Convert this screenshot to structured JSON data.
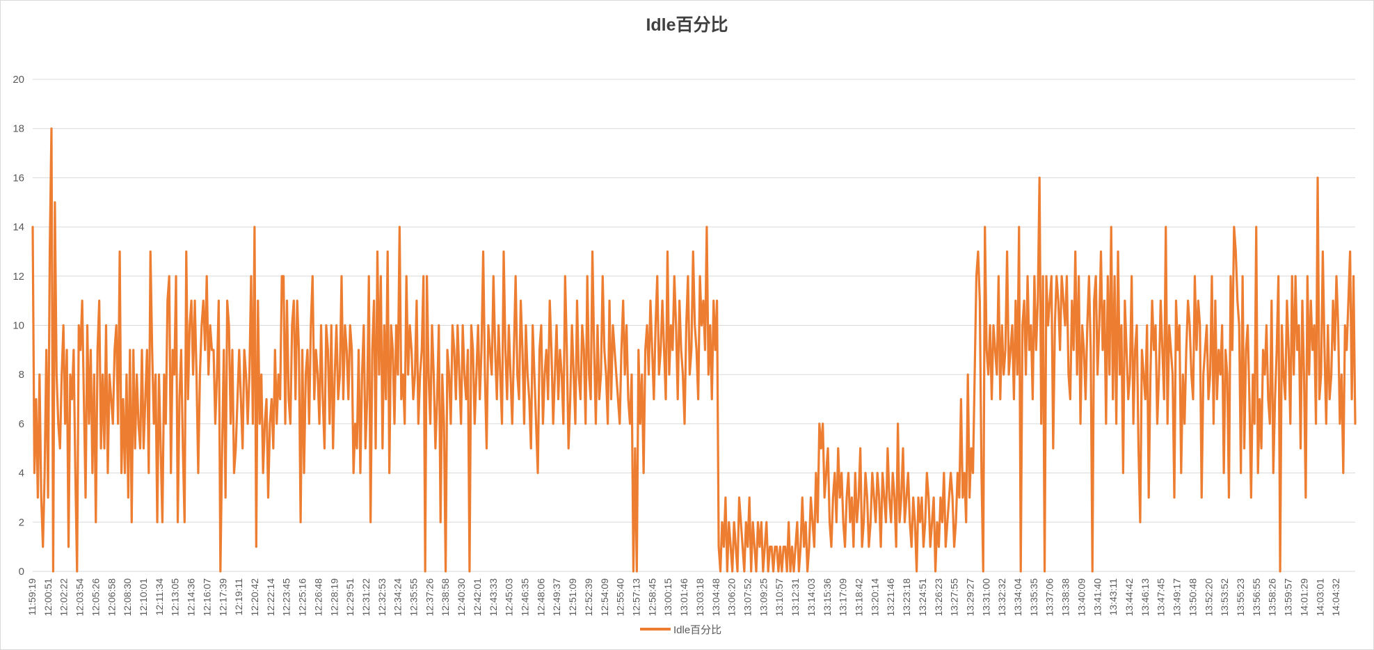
{
  "chart_data": {
    "type": "line",
    "title": "Idle百分比",
    "xlabel": "",
    "ylabel": "",
    "ylim": [
      0,
      20
    ],
    "yticks": [
      0,
      2,
      4,
      6,
      8,
      10,
      12,
      14,
      16,
      18,
      20
    ],
    "grid": true,
    "legend_position": "bottom",
    "color": "#ed7d31",
    "x_tick_labels": [
      "11:59:19",
      "12:00:51",
      "12:02:22",
      "12:03:54",
      "12:05:26",
      "12:06:58",
      "12:08:30",
      "12:10:01",
      "12:11:34",
      "12:13:05",
      "12:14:36",
      "12:16:07",
      "12:17:39",
      "12:19:11",
      "12:20:42",
      "12:22:14",
      "12:23:45",
      "12:25:16",
      "12:26:48",
      "12:28:19",
      "12:29:51",
      "12:31:22",
      "12:32:53",
      "12:34:24",
      "12:35:55",
      "12:37:26",
      "12:38:58",
      "12:40:30",
      "12:42:01",
      "12:43:33",
      "12:45:03",
      "12:46:35",
      "12:48:06",
      "12:49:37",
      "12:51:09",
      "12:52:39",
      "12:54:09",
      "12:55:40",
      "12:57:13",
      "12:58:45",
      "13:00:15",
      "13:01:46",
      "13:03:18",
      "13:04:48",
      "13:06:20",
      "13:07:52",
      "13:09:25",
      "13:10:57",
      "13:12:31",
      "13:14:03",
      "13:15:36",
      "13:17:09",
      "13:18:42",
      "13:20:14",
      "13:21:46",
      "13:23:18",
      "13:24:51",
      "13:26:23",
      "13:27:55",
      "13:29:27",
      "13:31:00",
      "13:32:32",
      "13:34:04",
      "13:35:35",
      "13:37:06",
      "13:38:38",
      "13:40:09",
      "13:41:40",
      "13:43:11",
      "13:44:42",
      "13:46:13",
      "13:47:45",
      "13:49:17",
      "13:50:48",
      "13:52:20",
      "13:53:52",
      "13:55:23",
      "13:56:55",
      "13:58:26",
      "13:59:57",
      "14:01:29",
      "14:03:01",
      "14:04:32"
    ],
    "series": [
      {
        "name": "Idle百分比",
        "values": [
          14,
          4,
          7,
          3,
          8,
          3,
          1,
          4,
          9,
          3,
          13,
          18,
          0,
          15,
          8,
          6,
          5,
          8,
          10,
          6,
          9,
          1,
          8,
          7,
          9,
          4,
          0,
          10,
          9,
          11,
          7,
          3,
          10,
          6,
          9,
          4,
          8,
          2,
          9,
          11,
          5,
          8,
          5,
          10,
          4,
          8,
          7,
          6,
          9,
          10,
          6,
          13,
          4,
          7,
          4,
          8,
          3,
          9,
          2,
          9,
          5,
          8,
          6,
          5,
          9,
          5,
          7,
          9,
          4,
          13,
          9,
          6,
          8,
          2,
          8,
          5,
          2,
          8,
          6,
          11,
          12,
          4,
          9,
          8,
          12,
          2,
          7,
          9,
          5,
          2,
          13,
          7,
          10,
          11,
          8,
          11,
          8,
          4,
          8,
          10,
          11,
          9,
          12,
          8,
          10,
          9,
          9,
          6,
          8,
          11,
          0,
          5,
          9,
          3,
          11,
          10,
          6,
          9,
          4,
          5,
          7,
          9,
          7,
          5,
          9,
          8,
          6,
          8,
          12,
          6,
          14,
          1,
          11,
          6,
          8,
          4,
          6,
          7,
          3,
          6,
          7,
          5,
          9,
          6,
          8,
          7,
          12,
          12,
          6,
          11,
          7,
          6,
          10,
          11,
          7,
          11,
          9,
          2,
          9,
          4,
          8,
          9,
          6,
          10,
          12,
          7,
          9,
          8,
          6,
          10,
          7,
          5,
          10,
          9,
          6,
          10,
          5,
          8,
          10,
          7,
          8,
          12,
          7,
          10,
          9,
          7,
          10,
          9,
          4,
          6,
          5,
          9,
          4,
          8,
          10,
          5,
          7,
          12,
          2,
          9,
          11,
          5,
          13,
          8,
          12,
          5,
          10,
          7,
          13,
          4,
          10,
          9,
          6,
          10,
          8,
          14,
          7,
          8,
          6,
          12,
          8,
          10,
          9,
          7,
          8,
          11,
          6,
          8,
          9,
          12,
          0,
          12,
          8,
          6,
          10,
          8,
          5,
          7,
          10,
          2,
          8,
          6,
          0,
          9,
          8,
          6,
          10,
          9,
          7,
          10,
          8,
          6,
          10,
          8,
          7,
          9,
          0,
          10,
          9,
          6,
          8,
          10,
          7,
          9,
          13,
          8,
          5,
          10,
          9,
          8,
          12,
          9,
          7,
          10,
          8,
          6,
          13,
          9,
          7,
          10,
          8,
          6,
          9,
          12,
          8,
          7,
          11,
          9,
          6,
          10,
          8,
          7,
          5,
          10,
          8,
          6,
          4,
          9,
          10,
          6,
          8,
          9,
          7,
          11,
          9,
          6,
          8,
          10,
          7,
          9,
          8,
          6,
          12,
          9,
          5,
          7,
          10,
          8,
          6,
          11,
          8,
          7,
          10,
          9,
          6,
          12,
          8,
          7,
          13,
          9,
          6,
          10,
          7,
          8,
          12,
          9,
          8,
          6,
          11,
          7,
          10,
          9,
          8,
          7,
          6,
          9,
          11,
          8,
          10,
          7,
          6,
          8,
          0,
          5,
          0,
          9,
          6,
          8,
          4,
          9,
          10,
          8,
          11,
          9,
          7,
          10,
          12,
          8,
          9,
          11,
          9,
          7,
          13,
          8,
          10,
          9,
          12,
          10,
          7,
          11,
          9,
          8,
          6,
          10,
          12,
          8,
          9,
          13,
          10,
          9,
          7,
          12,
          10,
          11,
          9,
          14,
          8,
          10,
          7,
          11,
          9,
          11,
          1,
          0,
          2,
          1,
          3,
          0,
          2,
          1,
          0,
          2,
          1,
          0,
          3,
          2,
          1,
          0,
          2,
          1,
          3,
          0,
          2,
          1,
          0,
          2,
          1,
          2,
          0,
          1,
          2,
          0,
          1,
          1,
          0,
          1,
          1,
          0,
          1,
          0,
          1,
          1,
          0,
          2,
          0,
          1,
          0,
          1,
          2,
          0,
          1,
          3,
          1,
          2,
          0,
          1,
          3,
          2,
          1,
          4,
          2,
          6,
          5,
          6,
          3,
          4,
          5,
          2,
          1,
          3,
          4,
          2,
          5,
          3,
          4,
          2,
          1,
          3,
          4,
          2,
          3,
          1,
          4,
          2,
          3,
          5,
          1,
          2,
          4,
          3,
          1,
          2,
          4,
          3,
          2,
          4,
          3,
          1,
          4,
          3,
          2,
          5,
          3,
          2,
          4,
          3,
          1,
          6,
          2,
          3,
          5,
          2,
          3,
          4,
          2,
          1,
          3,
          2,
          0,
          3,
          2,
          3,
          1,
          2,
          4,
          3,
          1,
          2,
          3,
          0,
          2,
          1,
          3,
          2,
          4,
          1,
          2,
          3,
          4,
          3,
          1,
          2,
          4,
          3,
          7,
          3,
          4,
          2,
          8,
          3,
          5,
          4,
          8,
          12,
          13,
          11,
          4,
          0,
          14,
          9,
          8,
          10,
          7,
          10,
          9,
          8,
          12,
          7,
          10,
          8,
          9,
          13,
          8,
          9,
          10,
          7,
          11,
          8,
          14,
          0,
          10,
          11,
          8,
          12,
          9,
          10,
          7,
          12,
          9,
          11,
          16,
          6,
          12,
          0,
          12,
          10,
          11,
          12,
          5,
          10,
          12,
          11,
          9,
          12,
          11,
          10,
          12,
          8,
          7,
          11,
          9,
          13,
          8,
          12,
          6,
          10,
          9,
          7,
          10,
          12,
          9,
          0,
          11,
          12,
          8,
          10,
          13,
          9,
          11,
          6,
          12,
          8,
          14,
          7,
          12,
          6,
          13,
          8,
          10,
          4,
          11,
          9,
          7,
          8,
          12,
          6,
          9,
          10,
          5,
          2,
          9,
          8,
          7,
          10,
          3,
          8,
          11,
          9,
          10,
          6,
          8,
          11,
          9,
          7,
          14,
          6,
          10,
          9,
          8,
          3,
          11,
          9,
          10,
          4,
          8,
          6,
          9,
          11,
          10,
          8,
          7,
          12,
          9,
          11,
          10,
          3,
          8,
          9,
          10,
          7,
          8,
          12,
          6,
          11,
          7,
          9,
          8,
          10,
          4,
          9,
          8,
          3,
          12,
          9,
          14,
          13,
          11,
          10,
          4,
          12,
          5,
          9,
          10,
          7,
          3,
          8,
          6,
          14,
          4,
          7,
          5,
          9,
          8,
          10,
          7,
          6,
          11,
          4,
          7,
          9,
          12,
          0,
          10,
          8,
          7,
          11,
          9,
          6,
          12,
          8,
          12,
          9,
          10,
          5,
          11,
          8,
          3,
          12,
          8,
          11,
          9,
          10,
          6,
          16,
          7,
          8,
          13,
          9,
          6,
          10,
          7,
          8,
          11,
          9,
          12,
          10,
          6,
          8,
          4,
          10,
          9,
          11,
          13,
          7,
          12,
          6
        ]
      }
    ]
  }
}
